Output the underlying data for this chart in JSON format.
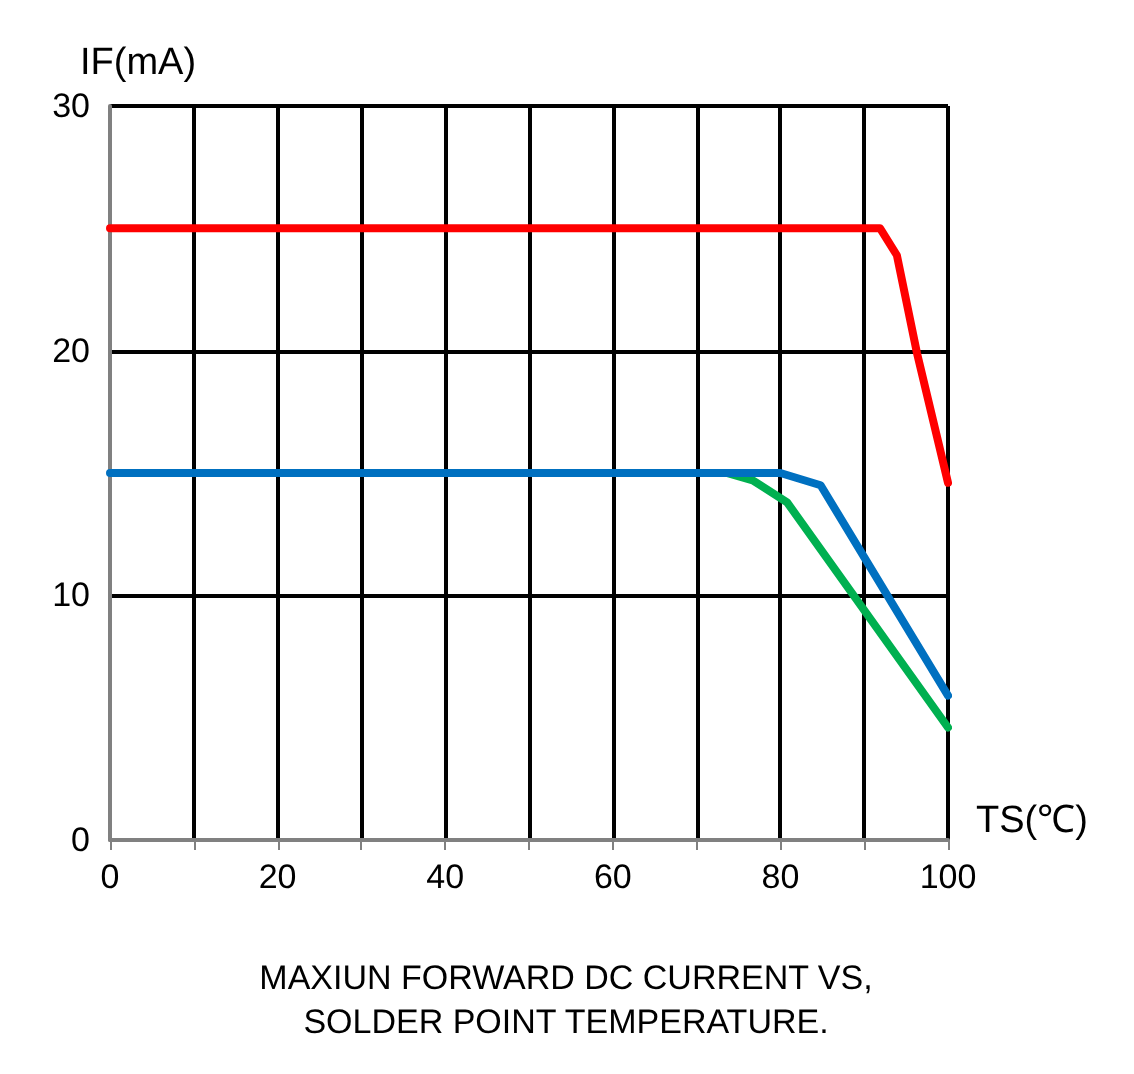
{
  "chart_data": {
    "type": "line",
    "xlabel": "TS(℃)",
    "ylabel": "IF(mA)",
    "annotations": [
      "MAXIUN FORWARD DC CURRENT VS,\nSOLDER POINT TEMPERATURE."
    ],
    "xlim": [
      0,
      100
    ],
    "ylim": [
      0,
      30
    ],
    "xticks": [
      0,
      {
        "value": 10,
        "label": null
      },
      20,
      {
        "value": 30,
        "label": null
      },
      40,
      {
        "value": 50,
        "label": null
      },
      60,
      {
        "value": 70,
        "label": null
      },
      80,
      {
        "value": 90,
        "label": null
      },
      100
    ],
    "yticks": [
      0,
      10,
      20,
      30
    ],
    "grid": true,
    "marker": "none",
    "line_style": "solid",
    "series": [
      {
        "color": "#ff0000",
        "x": [
          0,
          91.9,
          93.9,
          96.3,
          100
        ],
        "values": [
          25,
          25,
          23.9,
          19.9,
          14.6
        ]
      },
      {
        "color": "#00b050",
        "x": [
          73.6,
          76.7,
          80.8,
          100
        ],
        "values": [
          15,
          14.7,
          13.8,
          4.6
        ]
      },
      {
        "color": "#0070c0",
        "x": [
          0,
          80,
          84.8,
          100
        ],
        "values": [
          15,
          15,
          14.5,
          5.9
        ]
      }
    ]
  }
}
